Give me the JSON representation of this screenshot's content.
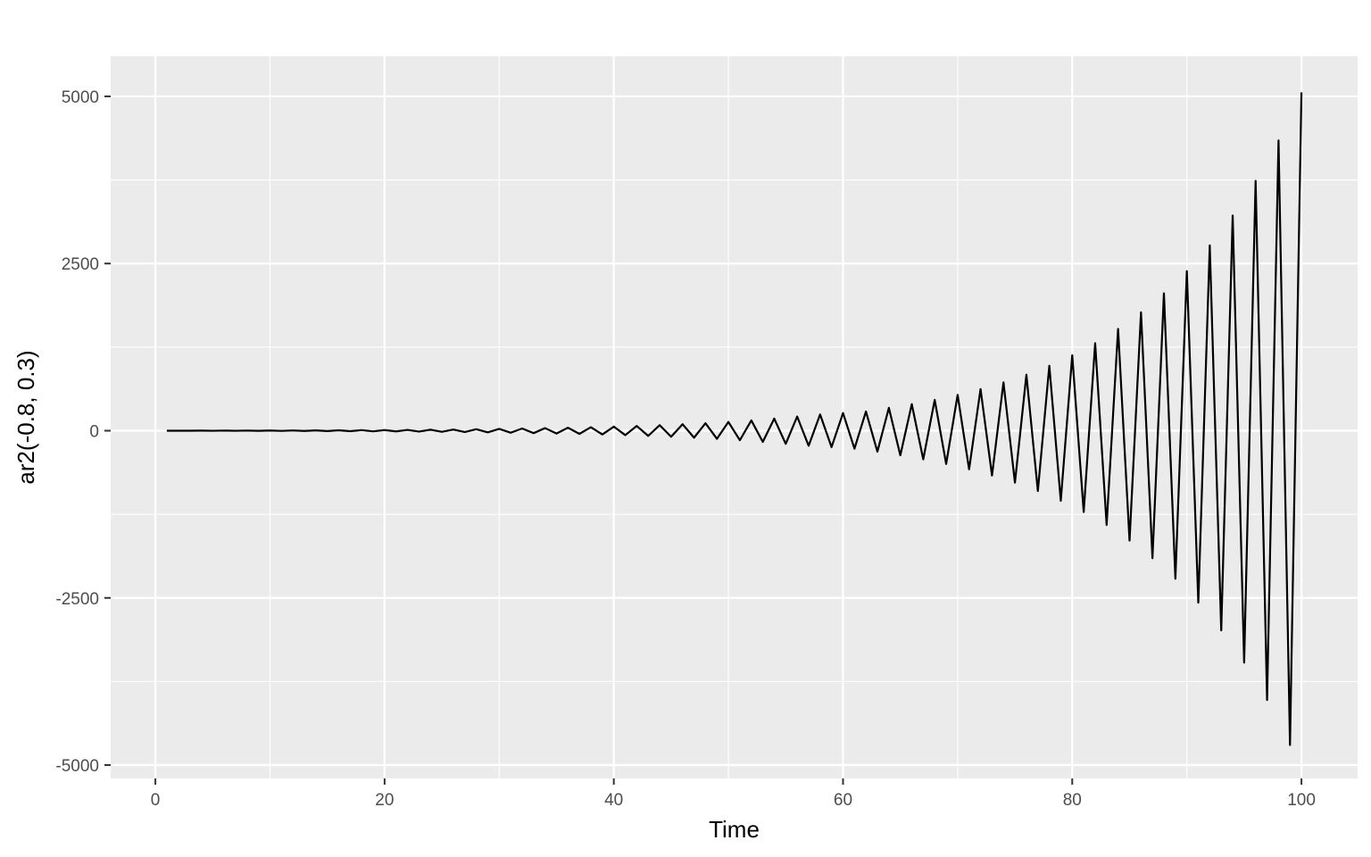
{
  "chart_data": {
    "type": "line",
    "title": "",
    "xlabel": "Time",
    "ylabel": "ar2(-0.8, 0.3)",
    "xlim": [
      -3.9,
      104.9
    ],
    "ylim": [
      -5200,
      5600
    ],
    "x_ticks": [
      0,
      20,
      40,
      60,
      80,
      100
    ],
    "x_tick_labels": [
      "0",
      "20",
      "40",
      "60",
      "80",
      "100"
    ],
    "x_minor_ticks": [
      10,
      30,
      50,
      70,
      90
    ],
    "y_ticks": [
      -5000,
      -2500,
      0,
      2500,
      5000
    ],
    "y_tick_labels": [
      "-5000",
      "-2500",
      "0",
      "2500",
      "5000"
    ],
    "y_minor_ticks": [
      -3750,
      -1250,
      1250,
      3750
    ],
    "grid": true,
    "legend": "none",
    "colors": {
      "panel": "#ebebeb",
      "grid": "#ffffff",
      "line": "#000000",
      "tick_text": "#4d4d4d",
      "title_text": "#000000"
    },
    "series": [
      {
        "x": [
          1,
          2,
          3,
          4,
          5,
          6,
          7,
          8,
          9,
          10,
          11,
          12,
          13,
          14,
          15,
          16,
          17,
          18,
          19,
          20,
          21,
          22,
          23,
          24,
          25,
          26,
          27,
          28,
          29,
          30,
          31,
          32,
          33,
          34,
          35,
          36,
          37,
          38,
          39,
          40,
          41,
          42,
          43,
          44,
          45,
          46,
          47,
          48,
          49,
          50,
          51,
          52,
          53,
          54,
          55,
          56,
          57,
          58,
          59,
          60,
          61,
          62,
          63,
          64,
          65,
          66,
          67,
          68,
          69,
          70,
          71,
          72,
          73,
          74,
          75,
          76,
          77,
          78,
          79,
          80,
          81,
          82,
          83,
          84,
          85,
          86,
          87,
          88,
          89,
          90,
          91,
          92,
          93,
          94,
          95,
          96,
          97,
          98,
          99,
          100
        ],
        "values": [
          0,
          0,
          0,
          1,
          -1,
          2,
          -1,
          2,
          -2,
          3,
          -3,
          4,
          -4,
          5,
          -5,
          6,
          -7,
          9,
          -9,
          10,
          -10,
          12,
          -13,
          15,
          -16,
          17,
          -19,
          22,
          -24,
          27,
          -30,
          33,
          -36,
          39,
          -42,
          45,
          -47,
          52,
          -56,
          61,
          -66,
          71,
          -77,
          83,
          -90,
          97,
          -104,
          112,
          -121,
          131,
          -142,
          154,
          -167,
          181,
          -196,
          212,
          -226,
          243,
          -245,
          264,
          -268,
          287,
          -313,
          342,
          -368,
          397,
          -428,
          461,
          -497,
          536,
          -577,
          622,
          -670,
          722,
          -777,
          837,
          -902,
          972,
          -1047,
          1128,
          -1215,
          1309,
          -1410,
          1522,
          -1643,
          1770,
          -1907,
          2055,
          -2214,
          2386,
          -2571,
          2771,
          -2986,
          3218,
          -3468,
          3737,
          -4027,
          4340,
          -4700,
          5060
        ]
      }
    ]
  }
}
